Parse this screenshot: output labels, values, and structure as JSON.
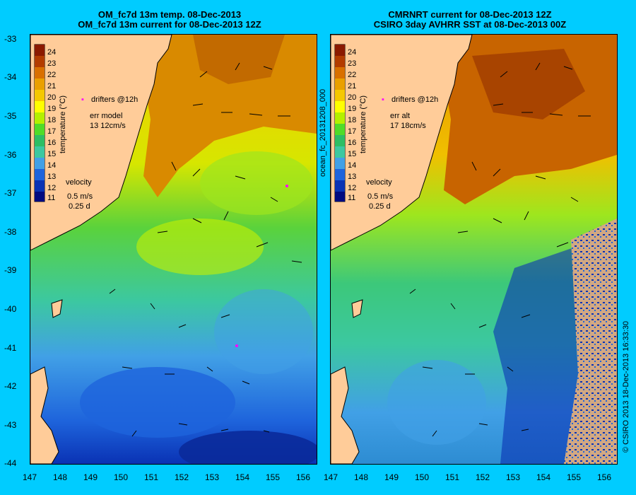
{
  "titles": {
    "left": [
      "OM_fc7d 13m temp. 08-Dec-2013",
      "OM_fc7d 13m current for 08-Dec-2013 12Z"
    ],
    "right": [
      "CMRNRT current for 08-Dec-2013 12Z",
      "CSIRO 3day AVHRR SST at 08-Dec-2013 00Z"
    ]
  },
  "axes": {
    "lat_labels": [
      "-33",
      "-34",
      "-35",
      "-36",
      "-37",
      "-38",
      "-39",
      "-40",
      "-41",
      "-42",
      "-43",
      "-44"
    ],
    "lon_labels": [
      "147",
      "148",
      "149",
      "150",
      "151",
      "152",
      "153",
      "154",
      "155",
      "156"
    ]
  },
  "colorbar": {
    "ticks": [
      "24",
      "23",
      "22",
      "21",
      "20",
      "19",
      "18",
      "17",
      "16",
      "15",
      "14",
      "13",
      "12",
      "11"
    ],
    "label": "temperature (°C)",
    "colors": [
      "#8b1a00",
      "#b33c00",
      "#d97000",
      "#eaa000",
      "#f5c800",
      "#ffff00",
      "#b4f000",
      "#50dc28",
      "#2dbe64",
      "#3cc8a0",
      "#41a0e6",
      "#1e64dc",
      "#0a32b4",
      "#000a80"
    ]
  },
  "legend": {
    "left": {
      "drifters": "drifters @12h",
      "err_title": "err model",
      "err_value": "13 12cm/s",
      "velocity": "velocity",
      "speed": "0.5 m/s",
      "duration": "0.25 d"
    },
    "right": {
      "drifters": "drifters @12h",
      "err_title": "err alt",
      "err_value": "17 18cm/s",
      "velocity": "velocity",
      "speed": "0.5 m/s",
      "duration": "0.25 d"
    }
  },
  "side_text": {
    "filename": "ocean_fc_20131208_000",
    "credit": "© CSIRO 2013   18-Dec-2013 16:33:30"
  },
  "colors": {
    "background": "#00ccff",
    "land": "#ffcc99",
    "deep_blue": "#0a3aa0",
    "warm_orange": "#d98a00"
  }
}
